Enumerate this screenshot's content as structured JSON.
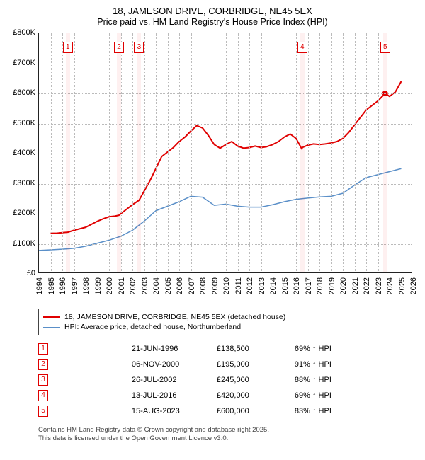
{
  "title": "18, JAMESON DRIVE, CORBRIDGE, NE45 5EX",
  "subtitle": "Price paid vs. HM Land Registry's House Price Index (HPI)",
  "chart": {
    "type": "line",
    "background_color": "#ffffff",
    "grid_color": "#bbbbbb",
    "axis_color": "#222222",
    "x": {
      "min": 1994,
      "max": 2026,
      "tick_step": 1,
      "label_fontsize": 11,
      "rotation": -90
    },
    "y": {
      "min": 0,
      "max": 800000,
      "tick_step": 100000,
      "label_fontsize": 11,
      "prefix": "£",
      "suffix_thousands": "K"
    },
    "title_fontsize": 13,
    "subtitle_fontsize": 12.5,
    "series": [
      {
        "name": "18, JAMESON DRIVE, CORBRIDGE, NE45 5EX (detached house)",
        "color": "#e00000",
        "line_width": 2,
        "points": [
          [
            1995.0,
            135000
          ],
          [
            1995.5,
            135000
          ],
          [
            1996.0,
            137000
          ],
          [
            1996.47,
            138500
          ],
          [
            1997.0,
            145000
          ],
          [
            1997.5,
            150000
          ],
          [
            1998.0,
            155000
          ],
          [
            1998.5,
            165000
          ],
          [
            1999.0,
            175000
          ],
          [
            1999.5,
            183000
          ],
          [
            2000.0,
            190000
          ],
          [
            2000.5,
            192000
          ],
          [
            2000.85,
            195000
          ],
          [
            2001.0,
            200000
          ],
          [
            2001.5,
            215000
          ],
          [
            2002.0,
            230000
          ],
          [
            2002.57,
            245000
          ],
          [
            2003.0,
            275000
          ],
          [
            2003.5,
            310000
          ],
          [
            2004.0,
            350000
          ],
          [
            2004.5,
            390000
          ],
          [
            2005.0,
            405000
          ],
          [
            2005.5,
            420000
          ],
          [
            2006.0,
            440000
          ],
          [
            2006.5,
            455000
          ],
          [
            2007.0,
            475000
          ],
          [
            2007.5,
            493000
          ],
          [
            2008.0,
            485000
          ],
          [
            2008.5,
            460000
          ],
          [
            2009.0,
            430000
          ],
          [
            2009.5,
            418000
          ],
          [
            2010.0,
            430000
          ],
          [
            2010.5,
            440000
          ],
          [
            2011.0,
            425000
          ],
          [
            2011.5,
            418000
          ],
          [
            2012.0,
            420000
          ],
          [
            2012.5,
            425000
          ],
          [
            2013.0,
            420000
          ],
          [
            2013.5,
            423000
          ],
          [
            2014.0,
            430000
          ],
          [
            2014.5,
            440000
          ],
          [
            2015.0,
            455000
          ],
          [
            2015.5,
            465000
          ],
          [
            2016.0,
            450000
          ],
          [
            2016.5,
            415000
          ],
          [
            2016.53,
            420000
          ],
          [
            2017.0,
            428000
          ],
          [
            2017.5,
            432000
          ],
          [
            2018.0,
            430000
          ],
          [
            2018.5,
            432000
          ],
          [
            2019.0,
            435000
          ],
          [
            2019.5,
            440000
          ],
          [
            2020.0,
            450000
          ],
          [
            2020.5,
            470000
          ],
          [
            2021.0,
            495000
          ],
          [
            2021.5,
            520000
          ],
          [
            2022.0,
            545000
          ],
          [
            2022.5,
            560000
          ],
          [
            2023.0,
            575000
          ],
          [
            2023.5,
            595000
          ],
          [
            2023.62,
            600000
          ],
          [
            2024.0,
            590000
          ],
          [
            2024.5,
            605000
          ],
          [
            2025.0,
            640000
          ]
        ]
      },
      {
        "name": "HPI: Average price, detached house, Northumberland",
        "color": "#5a8fc8",
        "line_width": 1.5,
        "points": [
          [
            1994.0,
            78000
          ],
          [
            1995.0,
            80000
          ],
          [
            1996.0,
            82000
          ],
          [
            1997.0,
            85000
          ],
          [
            1998.0,
            92000
          ],
          [
            1999.0,
            102000
          ],
          [
            2000.0,
            112000
          ],
          [
            2001.0,
            125000
          ],
          [
            2002.0,
            145000
          ],
          [
            2003.0,
            175000
          ],
          [
            2004.0,
            210000
          ],
          [
            2005.0,
            225000
          ],
          [
            2006.0,
            240000
          ],
          [
            2007.0,
            258000
          ],
          [
            2008.0,
            255000
          ],
          [
            2009.0,
            228000
          ],
          [
            2010.0,
            232000
          ],
          [
            2011.0,
            225000
          ],
          [
            2012.0,
            222000
          ],
          [
            2013.0,
            222000
          ],
          [
            2014.0,
            230000
          ],
          [
            2015.0,
            240000
          ],
          [
            2016.0,
            248000
          ],
          [
            2017.0,
            252000
          ],
          [
            2018.0,
            256000
          ],
          [
            2019.0,
            258000
          ],
          [
            2020.0,
            268000
          ],
          [
            2021.0,
            295000
          ],
          [
            2022.0,
            320000
          ],
          [
            2023.0,
            330000
          ],
          [
            2024.0,
            340000
          ],
          [
            2025.0,
            350000
          ]
        ]
      }
    ],
    "sale_markers": [
      {
        "num": "1",
        "year": 1996.47,
        "band_color": "rgba(230,0,0,0.06)",
        "box_border": "#e00000"
      },
      {
        "num": "2",
        "year": 2000.85,
        "band_color": "rgba(230,0,0,0.06)",
        "box_border": "#e00000"
      },
      {
        "num": "3",
        "year": 2002.57,
        "band_color": "rgba(230,0,0,0.06)",
        "box_border": "#e00000"
      },
      {
        "num": "4",
        "year": 2016.53,
        "band_color": "rgba(230,0,0,0.06)",
        "box_border": "#e00000"
      },
      {
        "num": "5",
        "year": 2023.62,
        "band_color": "rgba(230,0,0,0.06)",
        "box_border": "#e00000"
      }
    ],
    "sale_point_marker": {
      "shape": "circle",
      "radius": 4,
      "fill": "#e00000",
      "at": [
        2023.62,
        600000
      ]
    }
  },
  "legend": {
    "border_color": "#444444",
    "fontsize": 10.5,
    "items": [
      {
        "label": "18, JAMESON DRIVE, CORBRIDGE, NE45 5EX (detached house)",
        "color": "#e00000",
        "line_width": 2
      },
      {
        "label": "HPI: Average price, detached house, Northumberland",
        "color": "#5a8fc8",
        "line_width": 1.5
      }
    ]
  },
  "events": {
    "fontsize": 11,
    "columns": [
      "num",
      "date",
      "price",
      "delta"
    ],
    "rows": [
      {
        "num": "1",
        "date": "21-JUN-1996",
        "price": "£138,500",
        "delta": "69% ↑ HPI"
      },
      {
        "num": "2",
        "date": "06-NOV-2000",
        "price": "£195,000",
        "delta": "91% ↑ HPI"
      },
      {
        "num": "3",
        "date": "26-JUL-2002",
        "price": "£245,000",
        "delta": "88% ↑ HPI"
      },
      {
        "num": "4",
        "date": "13-JUL-2016",
        "price": "£420,000",
        "delta": "69% ↑ HPI"
      },
      {
        "num": "5",
        "date": "15-AUG-2023",
        "price": "£600,000",
        "delta": "83% ↑ HPI"
      }
    ]
  },
  "attribution": {
    "line1": "Contains HM Land Registry data © Crown copyright and database right 2025.",
    "line2": "This data is licensed under the Open Government Licence v3.0."
  }
}
